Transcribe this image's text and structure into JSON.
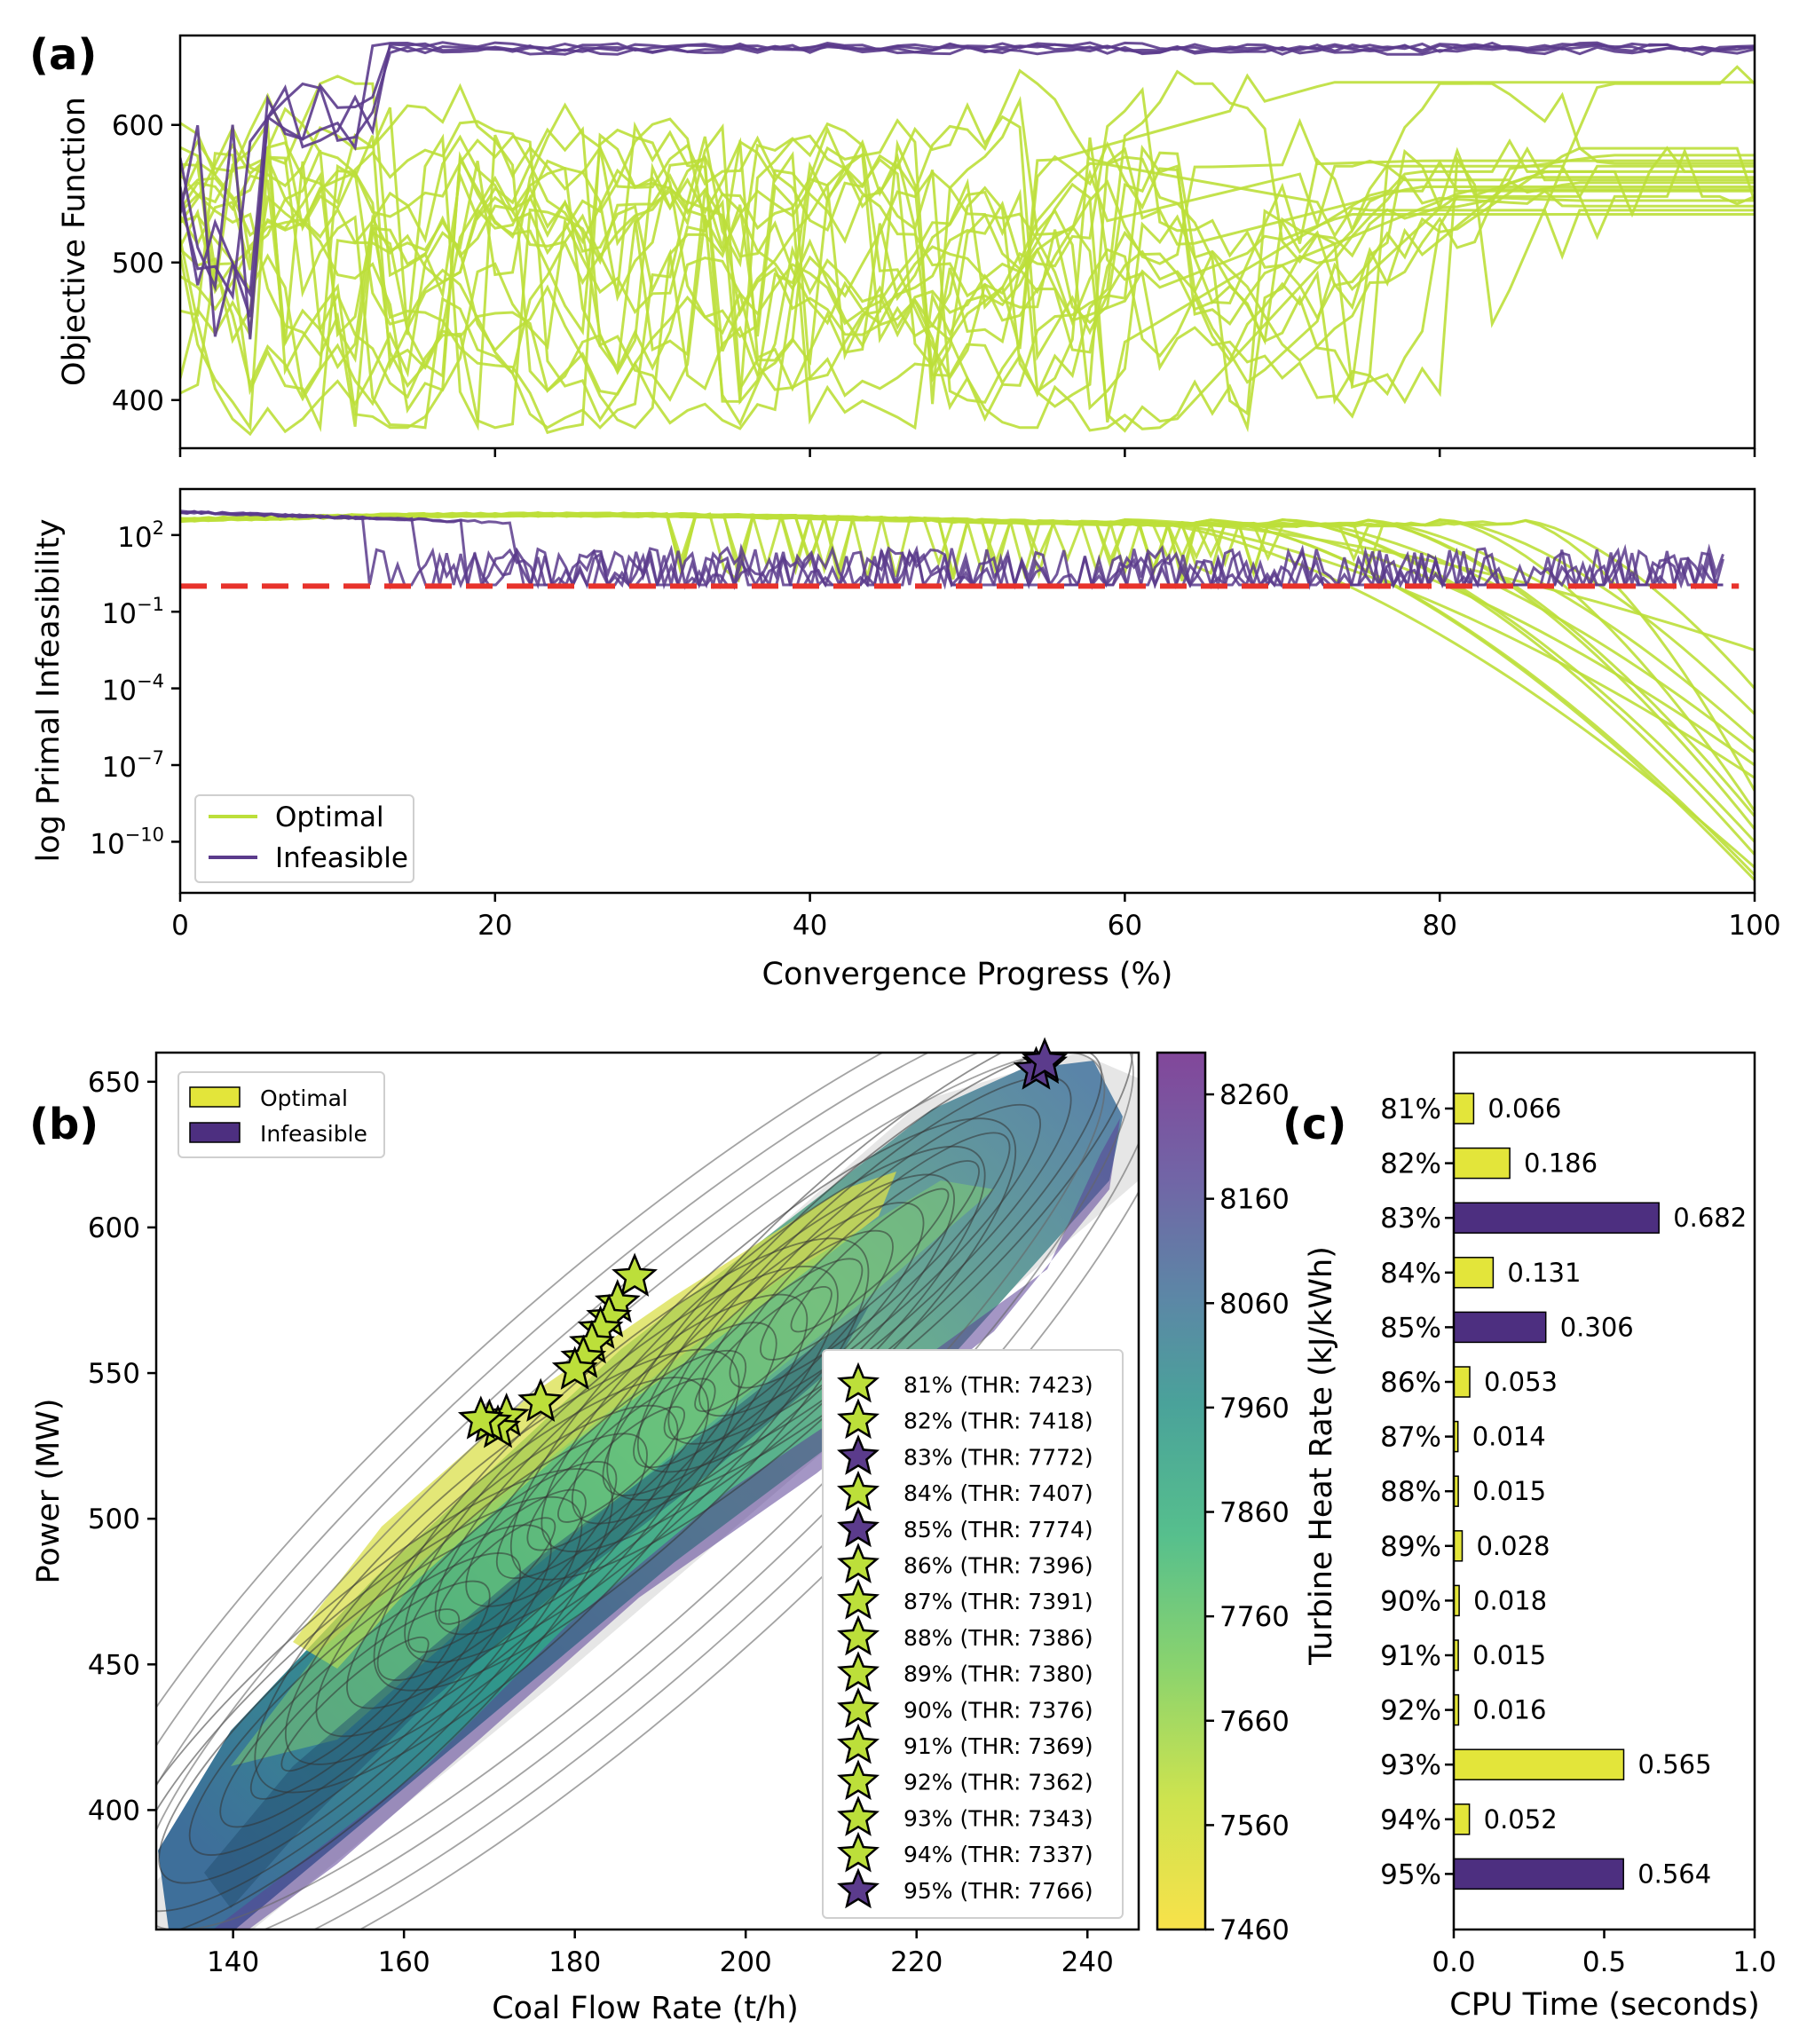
{
  "panels": [
    "(a)",
    "(b)",
    "(c)"
  ],
  "colors": {
    "optimal": "#bcdf3a",
    "infeasible": "#5b3b8c",
    "threshold": "#e8322b",
    "bar_optimal": "#e3e53a"
  },
  "chart_data": [
    {
      "id": "objective",
      "type": "line",
      "ylabel": "Objective Function",
      "xlim": [
        0,
        100
      ],
      "ylim": [
        365,
        665
      ],
      "yticks": [
        400,
        500,
        600
      ],
      "series": [
        {
          "name": "Optimal",
          "color": "#bcdf3a",
          "count": 20
        },
        {
          "name": "Infeasible",
          "color": "#5b3b8c",
          "count": 4
        }
      ]
    },
    {
      "id": "infeasibility",
      "type": "line",
      "yscale": "log",
      "ylabel": "log Primal Infeasibility",
      "xlabel": "Convergence Progress (%)",
      "xlim": [
        0,
        100
      ],
      "xticks": [
        0,
        20,
        40,
        60,
        80,
        100
      ],
      "ylim_log10": [
        -12,
        3.8
      ],
      "yticks": [
        {
          "exp": 2,
          "label": "10",
          "sup": "2"
        },
        {
          "exp": -1,
          "label": "10",
          "sup": "−1"
        },
        {
          "exp": -4,
          "label": "10",
          "sup": "−4"
        },
        {
          "exp": -7,
          "label": "10",
          "sup": "−7"
        },
        {
          "exp": -10,
          "label": "10",
          "sup": "−10"
        }
      ],
      "threshold_log10": 0,
      "legend": {
        "position": "lower-left",
        "entries": [
          "Optimal",
          "Infeasible"
        ]
      }
    },
    {
      "id": "contour",
      "type": "heatmap",
      "xlabel": "Coal Flow Rate (t/h)",
      "ylabel": "Power (MW)",
      "xlim": [
        131,
        246
      ],
      "ylim": [
        359,
        660
      ],
      "xticks": [
        140,
        160,
        180,
        200,
        220,
        240
      ],
      "yticks": [
        400,
        450,
        500,
        550,
        600,
        650
      ],
      "colorbar": {
        "label": "Turbine Heat Rate (kJ/kWh)",
        "min": 7460,
        "max": 8300,
        "ticks": [
          7460,
          7560,
          7660,
          7760,
          7860,
          7960,
          8060,
          8160,
          8260
        ]
      },
      "legend_top": {
        "position": "upper-left",
        "entries": [
          "Optimal",
          "Infeasible"
        ]
      },
      "stars": [
        {
          "label": "81% (THR: 7423)",
          "status": "optimal",
          "x": 187,
          "y": 583
        },
        {
          "label": "82% (THR: 7418)",
          "status": "optimal",
          "x": 185,
          "y": 574
        },
        {
          "label": "83% (THR: 7772)",
          "status": "infeasible",
          "x": 235,
          "y": 656
        },
        {
          "label": "84% (THR: 7407)",
          "status": "optimal",
          "x": 184,
          "y": 569
        },
        {
          "label": "85% (THR: 7774)",
          "status": "infeasible",
          "x": 234,
          "y": 654
        },
        {
          "label": "86% (THR: 7396)",
          "status": "optimal",
          "x": 183,
          "y": 565
        },
        {
          "label": "87% (THR: 7391)",
          "status": "optimal",
          "x": 182,
          "y": 560
        },
        {
          "label": "88% (THR: 7386)",
          "status": "optimal",
          "x": 181,
          "y": 555
        },
        {
          "label": "89% (THR: 7380)",
          "status": "optimal",
          "x": 180,
          "y": 551
        },
        {
          "label": "90% (THR: 7376)",
          "status": "optimal",
          "x": 176,
          "y": 540
        },
        {
          "label": "91% (THR: 7369)",
          "status": "optimal",
          "x": 172,
          "y": 535
        },
        {
          "label": "92% (THR: 7362)",
          "status": "optimal",
          "x": 171,
          "y": 531
        },
        {
          "label": "93% (THR: 7343)",
          "status": "optimal",
          "x": 170,
          "y": 533
        },
        {
          "label": "94% (THR: 7337)",
          "status": "optimal",
          "x": 169,
          "y": 534
        },
        {
          "label": "95% (THR: 7766)",
          "status": "infeasible",
          "x": 235,
          "y": 657
        }
      ]
    },
    {
      "id": "cpu",
      "type": "bar",
      "orientation": "horizontal",
      "xlabel": "CPU Time (seconds)",
      "xlim": [
        0,
        1.0
      ],
      "xticks": [
        "0.0",
        "0.5",
        "1.0"
      ],
      "categories": [
        "81%",
        "82%",
        "83%",
        "84%",
        "85%",
        "86%",
        "87%",
        "88%",
        "89%",
        "90%",
        "91%",
        "92%",
        "93%",
        "94%",
        "95%"
      ],
      "values": [
        0.066,
        0.186,
        0.682,
        0.131,
        0.306,
        0.053,
        0.014,
        0.015,
        0.028,
        0.018,
        0.015,
        0.016,
        0.565,
        0.052,
        0.564
      ],
      "labels": [
        "0.066",
        "0.186",
        "0.682",
        "0.131",
        "0.306",
        "0.053",
        "0.014",
        "0.015",
        "0.028",
        "0.018",
        "0.015",
        "0.016",
        "0.565",
        "0.052",
        "0.564"
      ],
      "status": [
        "optimal",
        "optimal",
        "infeasible",
        "optimal",
        "infeasible",
        "optimal",
        "optimal",
        "optimal",
        "optimal",
        "optimal",
        "optimal",
        "optimal",
        "optimal",
        "optimal",
        "infeasible"
      ]
    }
  ]
}
